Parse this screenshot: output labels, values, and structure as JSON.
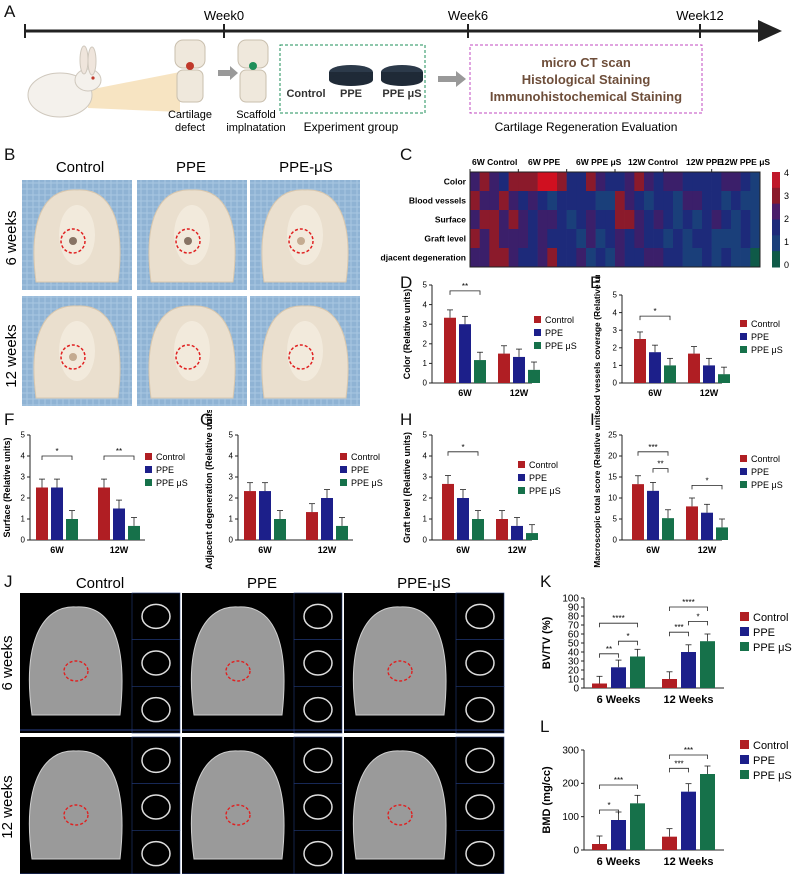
{
  "panel_letters": {
    "A": "A",
    "B": "B",
    "C": "C",
    "D": "D",
    "E": "E",
    "F": "F",
    "G": "G",
    "H": "H",
    "I": "I",
    "J": "J",
    "K": "K",
    "L": "L"
  },
  "timeline": {
    "weeks": [
      "Week0",
      "Week6",
      "Week12"
    ],
    "defect_label_1": "Cartilage",
    "defect_label_2": "defect",
    "scaffold_label_1": "Scaffold",
    "scaffold_label_2": "implnatation",
    "group_items": [
      "Control",
      "PPE",
      "PPE μS"
    ],
    "group_caption": "Experiment group",
    "eval_items": [
      "micro CT scan",
      "Histological Staining",
      "Immunohistochemical Staining"
    ],
    "eval_caption": "Cartilage Regeneration Evaluation"
  },
  "photos": {
    "columns": [
      "Control",
      "PPE",
      "PPE-μS"
    ],
    "rows": [
      "6 weeks",
      "12 weeks"
    ]
  },
  "heatmap": {
    "col_groups": [
      "6W Control",
      "6W PPE",
      "6W PPE μS",
      "12W Control",
      "12W PPE",
      "12W PPE μS"
    ],
    "rows": [
      "Color",
      "Blood vessels",
      "Surface",
      "Graft level",
      "Adjacent degeneration"
    ],
    "colorbar_ticks": [
      "4",
      "3",
      "2",
      "1",
      "0"
    ],
    "colors": {
      "high": "#8b1a2b",
      "mid": "#1d2a7a",
      "low": "#0f5a48"
    }
  },
  "legend_small": [
    "Control",
    "PPE",
    "PPE μS"
  ],
  "legend_large": [
    "Control",
    "PPE",
    "PPE μS"
  ],
  "series_colors": [
    "#b01e23",
    "#1c1f8a",
    "#16714a"
  ],
  "ct": {
    "columns": [
      "Control",
      "PPE",
      "PPE-μS"
    ],
    "rows": [
      "6 weeks",
      "12 weeks"
    ]
  },
  "chart_data": [
    {
      "panel": "D",
      "type": "bar",
      "categories": [
        "6W",
        "12W"
      ],
      "ylabel": "Color (Relative units)",
      "ylim": [
        0,
        5
      ],
      "yticks": [
        "0",
        "1",
        "2",
        "3",
        "4",
        "5"
      ],
      "series": [
        {
          "name": "Control",
          "values": [
            3.33,
            1.5
          ]
        },
        {
          "name": "PPE",
          "values": [
            3.0,
            1.33
          ]
        },
        {
          "name": "PPE μS",
          "values": [
            1.17,
            0.67
          ]
        }
      ],
      "annotations": [
        "**"
      ]
    },
    {
      "panel": "E",
      "type": "bar",
      "categories": [
        "6W",
        "12W"
      ],
      "ylabel": "Blood vessels coverage (Relative units)",
      "ylim": [
        0,
        5
      ],
      "yticks": [
        "0",
        "1",
        "2",
        "3",
        "4",
        "5"
      ],
      "series": [
        {
          "name": "Control",
          "values": [
            2.5,
            1.67
          ]
        },
        {
          "name": "PPE",
          "values": [
            1.75,
            1.0
          ]
        },
        {
          "name": "PPE μS",
          "values": [
            1.0,
            0.5
          ]
        }
      ],
      "annotations": [
        "*"
      ]
    },
    {
      "panel": "F",
      "type": "bar",
      "categories": [
        "6W",
        "12W"
      ],
      "ylabel": "Surface (Relative units)",
      "ylim": [
        0,
        5
      ],
      "yticks": [
        "0",
        "1",
        "2",
        "3",
        "4",
        "5"
      ],
      "series": [
        {
          "name": "Control",
          "values": [
            2.5,
            2.5
          ]
        },
        {
          "name": "PPE",
          "values": [
            2.5,
            1.5
          ]
        },
        {
          "name": "PPE μS",
          "values": [
            1.0,
            0.67
          ]
        }
      ],
      "annotations": [
        "*",
        "**"
      ]
    },
    {
      "panel": "G",
      "type": "bar",
      "categories": [
        "6W",
        "12W"
      ],
      "ylabel": "Adjacent degeneration (Relative units)",
      "ylim": [
        0,
        5
      ],
      "yticks": [
        "0",
        "1",
        "2",
        "3",
        "4",
        "5"
      ],
      "series": [
        {
          "name": "Control",
          "values": [
            2.33,
            1.33
          ]
        },
        {
          "name": "PPE",
          "values": [
            2.33,
            2.0
          ]
        },
        {
          "name": "PPE μS",
          "values": [
            1.0,
            0.67
          ]
        }
      ],
      "annotations": []
    },
    {
      "panel": "H",
      "type": "bar",
      "categories": [
        "6W",
        "12W"
      ],
      "ylabel": "Graft level (Relative units)",
      "ylim": [
        0,
        5
      ],
      "yticks": [
        "0",
        "1",
        "2",
        "3",
        "4",
        "5"
      ],
      "series": [
        {
          "name": "Control",
          "values": [
            2.67,
            1.0
          ]
        },
        {
          "name": "PPE",
          "values": [
            2.0,
            0.67
          ]
        },
        {
          "name": "PPE μS",
          "values": [
            1.0,
            0.33
          ]
        }
      ],
      "annotations": [
        "*"
      ]
    },
    {
      "panel": "I",
      "type": "bar",
      "categories": [
        "6W",
        "12W"
      ],
      "ylabel": "Macroscopic total score (Relative units)",
      "ylim": [
        0,
        25
      ],
      "yticks": [
        "0",
        "5",
        "10",
        "15",
        "20",
        "25"
      ],
      "series": [
        {
          "name": "Control",
          "values": [
            13.3,
            8.0
          ]
        },
        {
          "name": "PPE",
          "values": [
            11.7,
            6.5
          ]
        },
        {
          "name": "PPE μS",
          "values": [
            5.2,
            3.0
          ]
        }
      ],
      "annotations": [
        "***",
        "**",
        "*"
      ]
    },
    {
      "panel": "K",
      "type": "bar",
      "categories": [
        "6 Weeks",
        "12 Weeks"
      ],
      "ylabel": "BV/TV (%)",
      "ylim": [
        0,
        100
      ],
      "yticks": [
        "0",
        "10",
        "20",
        "30",
        "40",
        "50",
        "60",
        "70",
        "80",
        "90",
        "100"
      ],
      "series": [
        {
          "name": "Control",
          "values": [
            5,
            10
          ]
        },
        {
          "name": "PPE",
          "values": [
            23,
            40
          ]
        },
        {
          "name": "PPE μS",
          "values": [
            35,
            52
          ]
        }
      ],
      "annotations": [
        "****",
        "**",
        "*",
        "****",
        "***",
        "*"
      ]
    },
    {
      "panel": "L",
      "type": "bar",
      "categories": [
        "6 Weeks",
        "12 Weeks"
      ],
      "ylabel": "BMD (mg/cc)",
      "ylim": [
        0,
        300
      ],
      "yticks": [
        "0",
        "100",
        "200",
        "300"
      ],
      "series": [
        {
          "name": "Control",
          "values": [
            18,
            40
          ]
        },
        {
          "name": "PPE",
          "values": [
            90,
            175
          ]
        },
        {
          "name": "PPE μS",
          "values": [
            140,
            228
          ]
        }
      ],
      "annotations": [
        "***",
        "*",
        "***",
        "***"
      ]
    }
  ]
}
